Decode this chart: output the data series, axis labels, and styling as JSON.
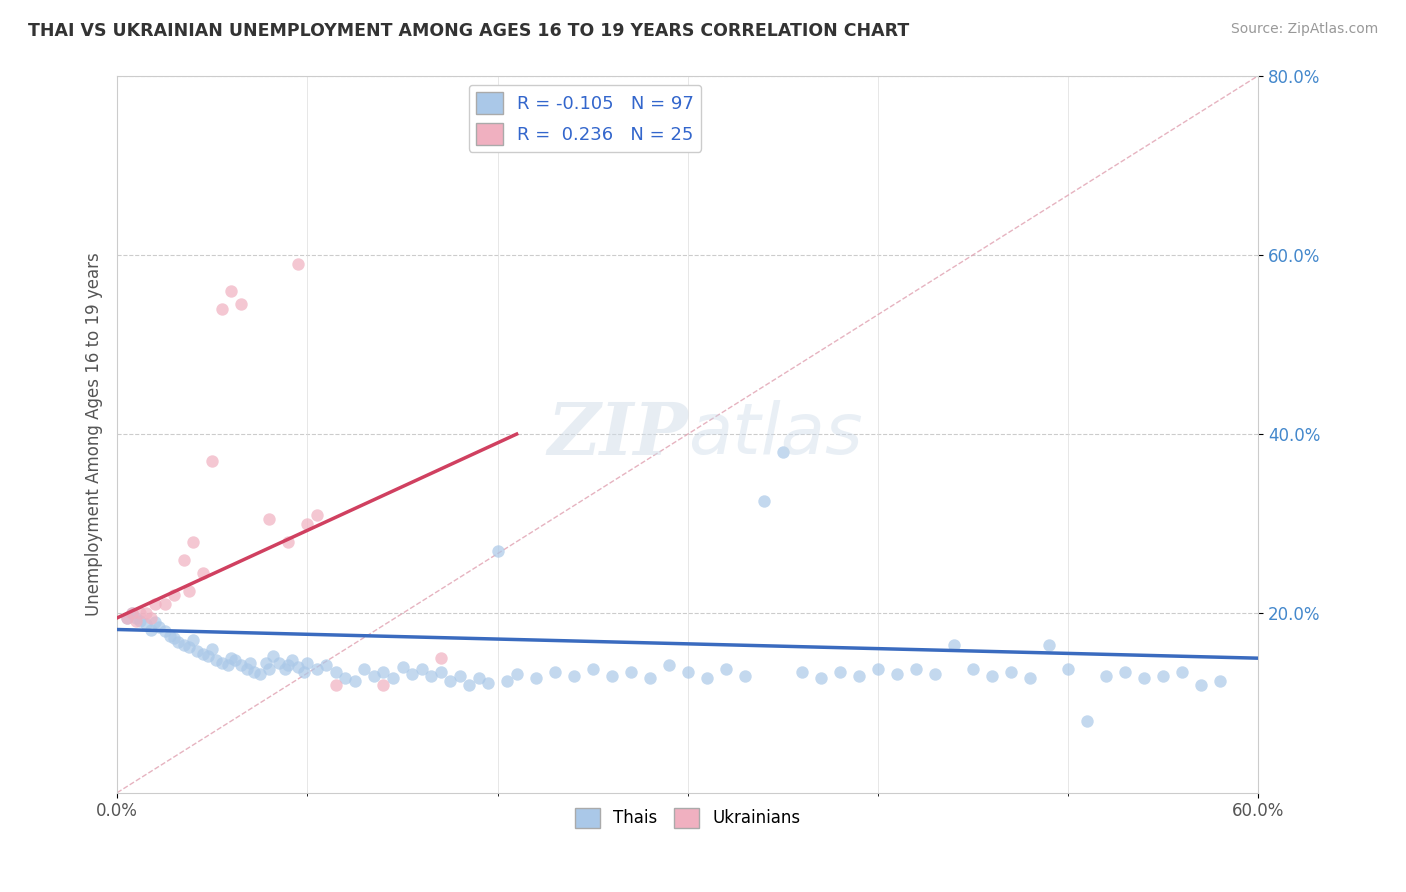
{
  "title": "THAI VS UKRAINIAN UNEMPLOYMENT AMONG AGES 16 TO 19 YEARS CORRELATION CHART",
  "source": "Source: ZipAtlas.com",
  "xlim": [
    0.0,
    0.6
  ],
  "ylim": [
    0.0,
    0.8
  ],
  "xtick_positions": [
    0.0,
    0.6
  ],
  "xtick_labels": [
    "0.0%",
    "60.0%"
  ],
  "ytick_positions": [
    0.2,
    0.4,
    0.6,
    0.8
  ],
  "ytick_labels": [
    "20.0%",
    "40.0%",
    "60.0%",
    "80.0%"
  ],
  "legend_r1": "R = -0.105",
  "legend_n1": "N = 97",
  "legend_r2": "R =  0.236",
  "legend_n2": "N = 25",
  "color_thai": "#aac8e8",
  "color_ukrainian": "#f0b0c0",
  "color_trend_thai": "#3a6bbf",
  "color_trend_ukrainian": "#d04060",
  "color_diagonal": "#e0a0b0",
  "color_ytick": "#4488cc",
  "thai_scatter": [
    [
      0.005,
      0.195
    ],
    [
      0.008,
      0.2
    ],
    [
      0.01,
      0.195
    ],
    [
      0.012,
      0.192
    ],
    [
      0.015,
      0.188
    ],
    [
      0.018,
      0.182
    ],
    [
      0.02,
      0.19
    ],
    [
      0.022,
      0.185
    ],
    [
      0.025,
      0.18
    ],
    [
      0.028,
      0.175
    ],
    [
      0.03,
      0.172
    ],
    [
      0.032,
      0.168
    ],
    [
      0.035,
      0.165
    ],
    [
      0.038,
      0.162
    ],
    [
      0.04,
      0.17
    ],
    [
      0.042,
      0.158
    ],
    [
      0.045,
      0.155
    ],
    [
      0.048,
      0.152
    ],
    [
      0.05,
      0.16
    ],
    [
      0.052,
      0.148
    ],
    [
      0.055,
      0.145
    ],
    [
      0.058,
      0.142
    ],
    [
      0.06,
      0.15
    ],
    [
      0.062,
      0.148
    ],
    [
      0.065,
      0.142
    ],
    [
      0.068,
      0.138
    ],
    [
      0.07,
      0.145
    ],
    [
      0.072,
      0.135
    ],
    [
      0.075,
      0.132
    ],
    [
      0.078,
      0.145
    ],
    [
      0.08,
      0.138
    ],
    [
      0.082,
      0.152
    ],
    [
      0.085,
      0.145
    ],
    [
      0.088,
      0.138
    ],
    [
      0.09,
      0.142
    ],
    [
      0.092,
      0.148
    ],
    [
      0.095,
      0.14
    ],
    [
      0.098,
      0.135
    ],
    [
      0.1,
      0.145
    ],
    [
      0.105,
      0.138
    ],
    [
      0.11,
      0.142
    ],
    [
      0.115,
      0.135
    ],
    [
      0.12,
      0.128
    ],
    [
      0.125,
      0.125
    ],
    [
      0.13,
      0.138
    ],
    [
      0.135,
      0.13
    ],
    [
      0.14,
      0.135
    ],
    [
      0.145,
      0.128
    ],
    [
      0.15,
      0.14
    ],
    [
      0.155,
      0.132
    ],
    [
      0.16,
      0.138
    ],
    [
      0.165,
      0.13
    ],
    [
      0.17,
      0.135
    ],
    [
      0.175,
      0.125
    ],
    [
      0.18,
      0.13
    ],
    [
      0.185,
      0.12
    ],
    [
      0.19,
      0.128
    ],
    [
      0.195,
      0.122
    ],
    [
      0.2,
      0.27
    ],
    [
      0.205,
      0.125
    ],
    [
      0.21,
      0.132
    ],
    [
      0.22,
      0.128
    ],
    [
      0.23,
      0.135
    ],
    [
      0.24,
      0.13
    ],
    [
      0.25,
      0.138
    ],
    [
      0.26,
      0.13
    ],
    [
      0.27,
      0.135
    ],
    [
      0.28,
      0.128
    ],
    [
      0.29,
      0.142
    ],
    [
      0.3,
      0.135
    ],
    [
      0.31,
      0.128
    ],
    [
      0.32,
      0.138
    ],
    [
      0.33,
      0.13
    ],
    [
      0.34,
      0.325
    ],
    [
      0.35,
      0.38
    ],
    [
      0.36,
      0.135
    ],
    [
      0.37,
      0.128
    ],
    [
      0.38,
      0.135
    ],
    [
      0.39,
      0.13
    ],
    [
      0.4,
      0.138
    ],
    [
      0.41,
      0.132
    ],
    [
      0.42,
      0.138
    ],
    [
      0.43,
      0.132
    ],
    [
      0.44,
      0.165
    ],
    [
      0.45,
      0.138
    ],
    [
      0.46,
      0.13
    ],
    [
      0.47,
      0.135
    ],
    [
      0.48,
      0.128
    ],
    [
      0.49,
      0.165
    ],
    [
      0.5,
      0.138
    ],
    [
      0.51,
      0.08
    ],
    [
      0.52,
      0.13
    ],
    [
      0.53,
      0.135
    ],
    [
      0.54,
      0.128
    ],
    [
      0.55,
      0.13
    ],
    [
      0.56,
      0.135
    ],
    [
      0.57,
      0.12
    ],
    [
      0.58,
      0.125
    ]
  ],
  "ukrainian_scatter": [
    [
      0.005,
      0.195
    ],
    [
      0.008,
      0.2
    ],
    [
      0.01,
      0.192
    ],
    [
      0.012,
      0.2
    ],
    [
      0.015,
      0.2
    ],
    [
      0.018,
      0.195
    ],
    [
      0.02,
      0.21
    ],
    [
      0.025,
      0.21
    ],
    [
      0.03,
      0.22
    ],
    [
      0.035,
      0.26
    ],
    [
      0.038,
      0.225
    ],
    [
      0.04,
      0.28
    ],
    [
      0.045,
      0.245
    ],
    [
      0.05,
      0.37
    ],
    [
      0.055,
      0.54
    ],
    [
      0.06,
      0.56
    ],
    [
      0.065,
      0.545
    ],
    [
      0.08,
      0.305
    ],
    [
      0.09,
      0.28
    ],
    [
      0.095,
      0.59
    ],
    [
      0.1,
      0.3
    ],
    [
      0.105,
      0.31
    ],
    [
      0.115,
      0.12
    ],
    [
      0.14,
      0.12
    ],
    [
      0.17,
      0.15
    ]
  ],
  "thai_trend": [
    0.0,
    0.182,
    0.6,
    0.15
  ],
  "ukrainian_trend": [
    0.0,
    0.195,
    0.21,
    0.4
  ],
  "diagonal": [
    0.0,
    0.0,
    0.6,
    0.8
  ]
}
